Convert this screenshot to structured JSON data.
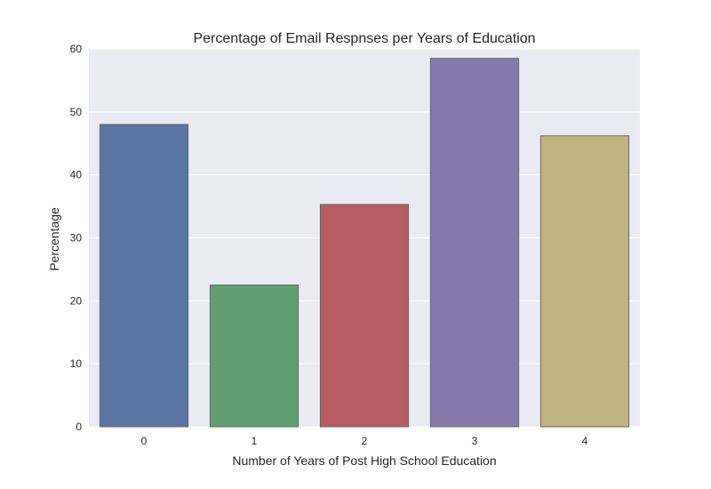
{
  "chart_data": {
    "type": "bar",
    "title": "Percentage of Email Respnses per Years of Education",
    "xlabel": "Number of Years of Post High School Education",
    "ylabel": "Percentage",
    "categories": [
      "0",
      "1",
      "2",
      "3",
      "4"
    ],
    "values": [
      48.0,
      22.5,
      35.3,
      58.5,
      46.2
    ],
    "ylim": [
      0,
      60
    ],
    "yticks": [
      "0",
      "10",
      "20",
      "30",
      "40",
      "50",
      "60"
    ],
    "grid": true,
    "background_color": "#eaeaf2",
    "colors": [
      "#5875a4",
      "#5f9e6e",
      "#b55d60",
      "#857aab",
      "#c1b37f"
    ]
  }
}
